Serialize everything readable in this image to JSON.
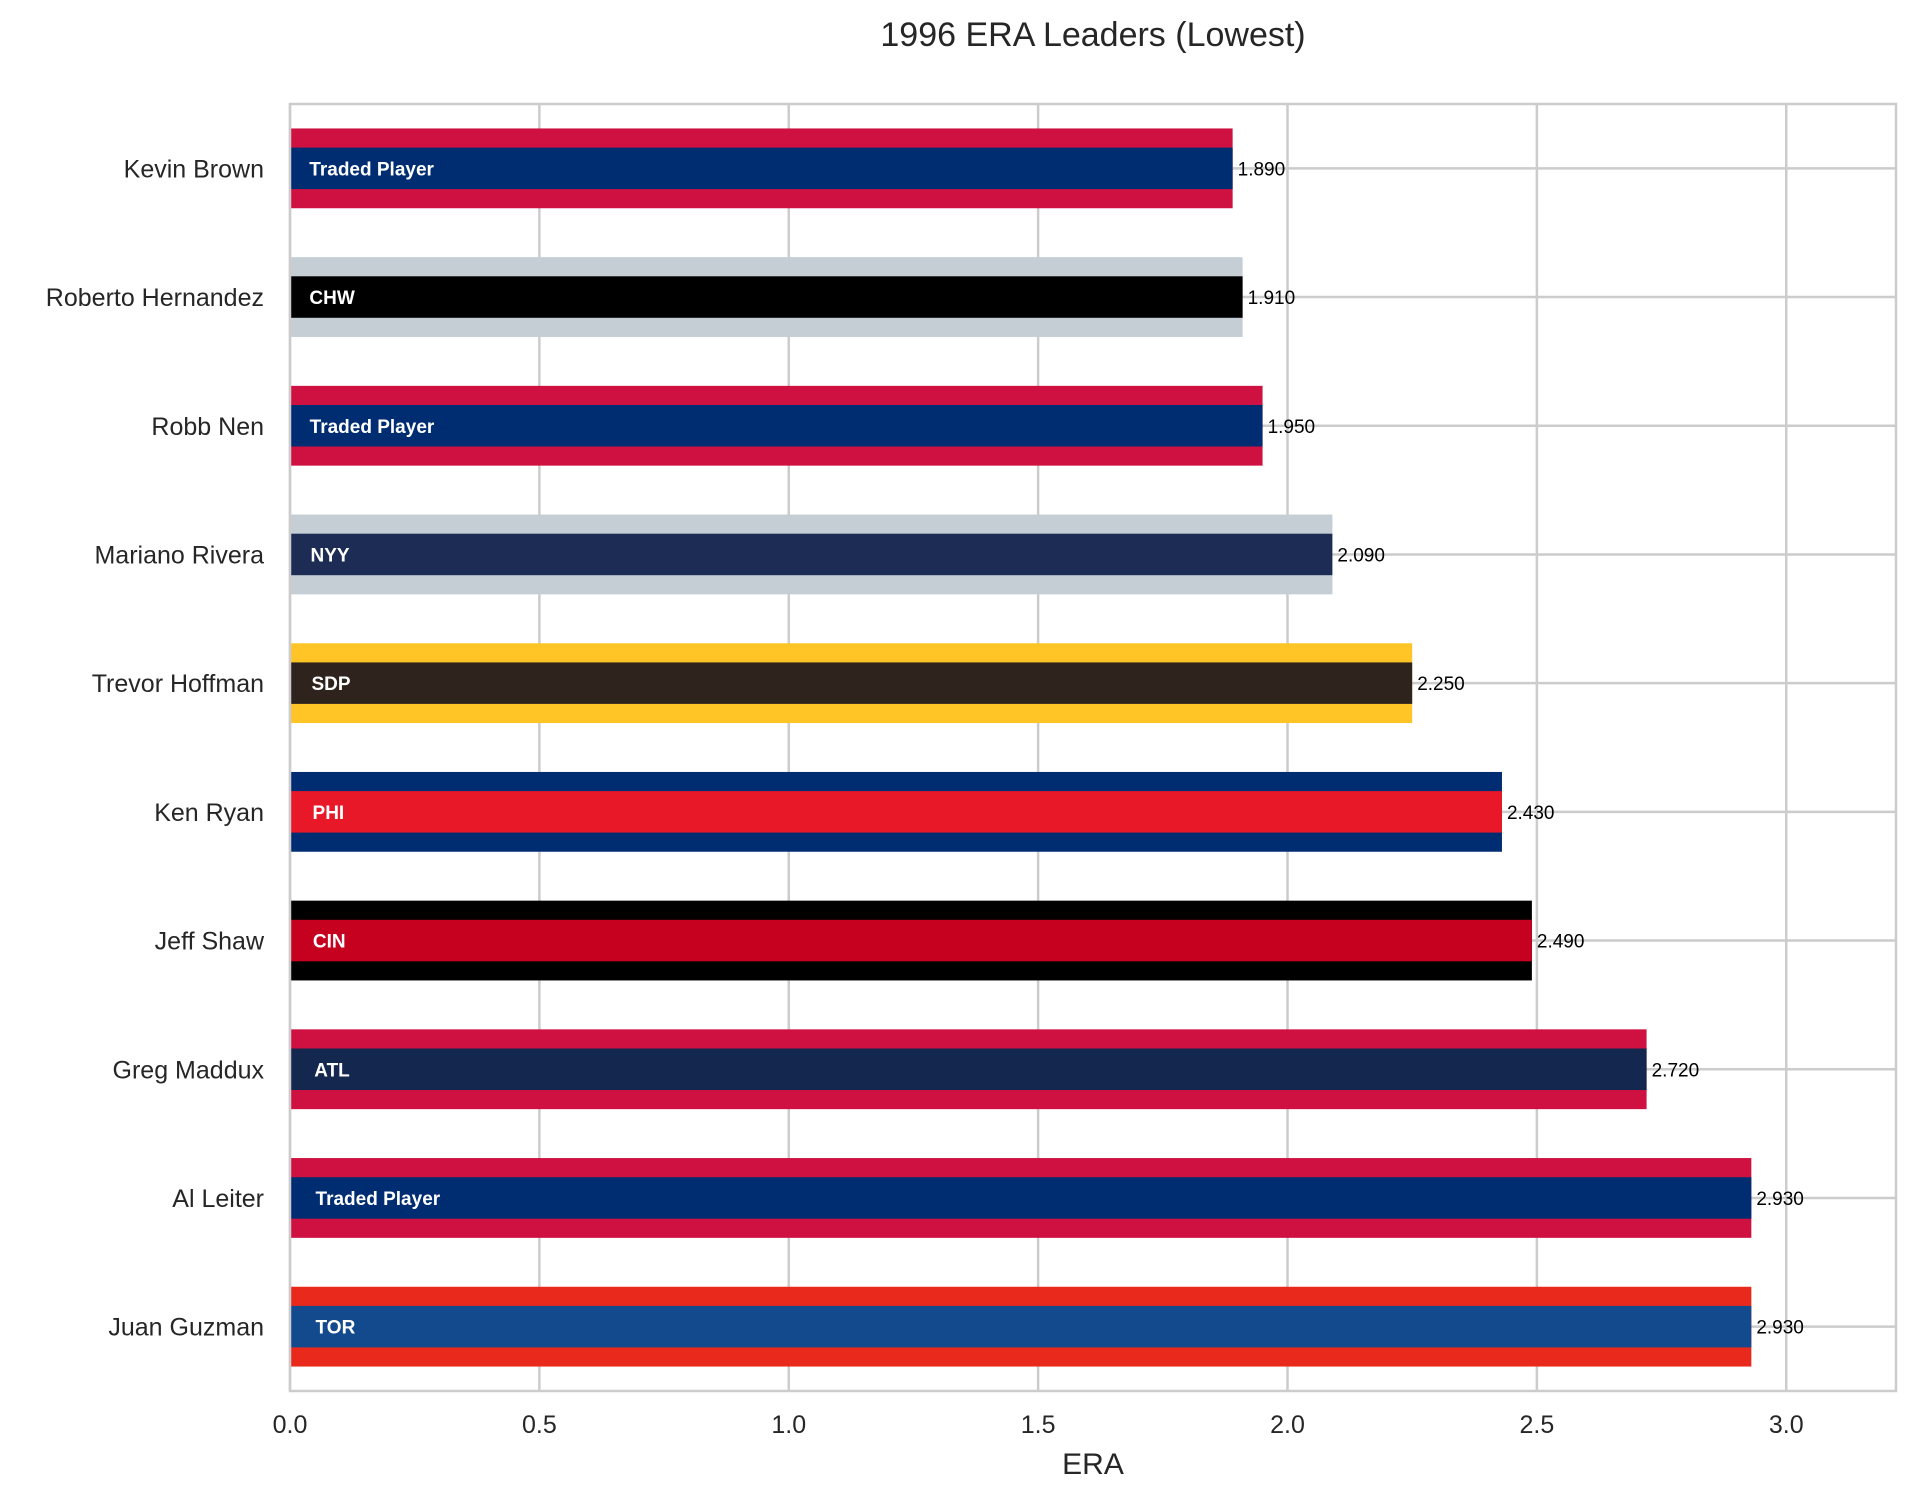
{
  "chart_data": {
    "type": "bar",
    "orientation": "horizontal",
    "title": "1996 ERA Leaders (Lowest)",
    "xlabel": "ERA",
    "ylabel": "",
    "xlim": [
      0,
      3.2
    ],
    "xticks": [
      "0.0",
      "0.5",
      "1.0",
      "1.5",
      "2.0",
      "2.5",
      "3.0"
    ],
    "grid": true,
    "categories": [
      "Kevin Brown",
      "Roberto Hernandez",
      "Robb Nen",
      "Mariano Rivera",
      "Trevor Hoffman",
      "Ken Ryan",
      "Jeff Shaw",
      "Greg Maddux",
      "Al Leiter",
      "Juan Guzman"
    ],
    "values": [
      1.89,
      1.91,
      1.95,
      2.09,
      2.25,
      2.43,
      2.49,
      2.72,
      2.93,
      2.93
    ],
    "value_labels": [
      "1.890",
      "1.910",
      "1.950",
      "2.090",
      "2.250",
      "2.430",
      "2.490",
      "2.720",
      "2.930",
      "2.930"
    ],
    "team_labels": [
      "Traded Player",
      "CHW",
      "Traded Player",
      "NYY",
      "SDP",
      "PHI",
      "CIN",
      "ATL",
      "Traded Player",
      "TOR"
    ],
    "colors": {
      "primary": [
        "#002D72",
        "#000000",
        "#002D72",
        "#1C2C55",
        "#2F241D",
        "#E81828",
        "#C6011F",
        "#13274F",
        "#002D72",
        "#134A8E"
      ],
      "secondary": [
        "#CE1141",
        "#C4CED4",
        "#CE1141",
        "#C4CED4",
        "#FFC425",
        "#002D72",
        "#000000",
        "#CE1141",
        "#CE1141",
        "#E8291C"
      ]
    }
  }
}
